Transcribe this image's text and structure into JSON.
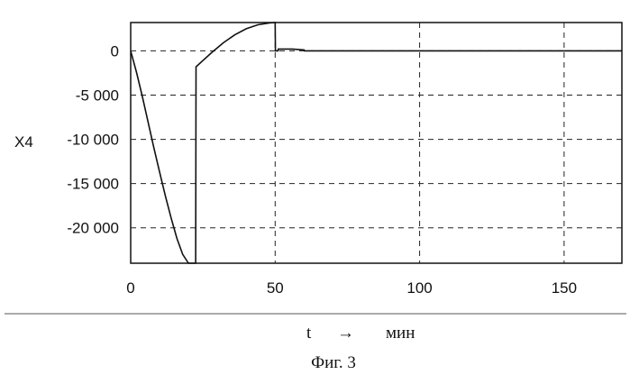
{
  "chart_data": {
    "type": "line",
    "title": "",
    "ylabel": "X4",
    "xlabel": "t",
    "xlabel_arrow": "→",
    "xunit": "мин",
    "caption": "Фиг. 3",
    "xlim": [
      0,
      170
    ],
    "ylim": [
      -24000,
      3200
    ],
    "grid": true,
    "x_ticks": [
      {
        "value": 0,
        "label": "0"
      },
      {
        "value": 50,
        "label": "50"
      },
      {
        "value": 100,
        "label": "100"
      },
      {
        "value": 150,
        "label": "150"
      }
    ],
    "y_ticks": [
      {
        "value": 0,
        "label": "0"
      },
      {
        "value": -5000,
        "label": "-5 000"
      },
      {
        "value": -10000,
        "label": "-10 000"
      },
      {
        "value": -15000,
        "label": "-15 000"
      },
      {
        "value": -20000,
        "label": "-20 000"
      }
    ],
    "series": [
      {
        "x": [
          0,
          2,
          4,
          6,
          8,
          10,
          12,
          14,
          16,
          18,
          20,
          22,
          22.5,
          22.6,
          25,
          28,
          32,
          36,
          40,
          44,
          48,
          50,
          50.1,
          51,
          51.1,
          56,
          60,
          60.1,
          100,
          150,
          170
        ],
        "y": [
          0,
          -2400,
          -5100,
          -8000,
          -10900,
          -13700,
          -16400,
          -18900,
          -21200,
          -23000,
          -24000,
          -24000,
          -24000,
          -1800,
          -1100,
          -200,
          900,
          1800,
          2500,
          2950,
          3150,
          3200,
          0,
          0,
          200,
          200,
          100,
          0,
          0,
          0,
          0
        ]
      }
    ]
  }
}
